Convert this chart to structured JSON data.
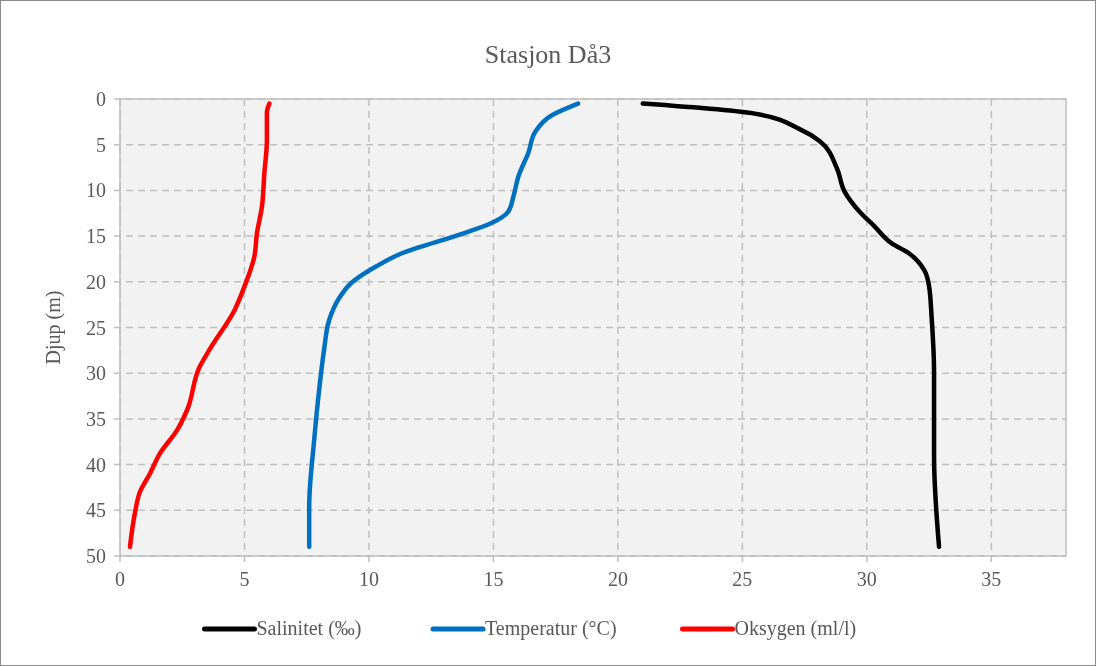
{
  "chart_data": {
    "type": "line",
    "title": "Stasjon Då3",
    "ylabel": "Djup (m)",
    "xlim": [
      0,
      38
    ],
    "xticks": [
      0,
      5,
      10,
      15,
      20,
      25,
      30,
      35
    ],
    "ylim": [
      50,
      0
    ],
    "yticks": [
      0,
      5,
      10,
      15,
      20,
      25,
      30,
      35,
      40,
      45,
      50
    ],
    "grid": true,
    "legend": "bottom",
    "line_style": "solid",
    "marker": "none",
    "series": [
      {
        "name": "Salinitet (‰)",
        "color": "#000000",
        "x": [
          21.0,
          25.5,
          27.3,
          28.1,
          28.8,
          29.1,
          29.7,
          30.3,
          31.0,
          31.7,
          32.3,
          32.5,
          32.6,
          32.7,
          32.7,
          32.9
        ],
        "values": [
          0.5,
          1.6,
          3.3,
          4.6,
          7.6,
          10.1,
          12.3,
          13.9,
          15.8,
          16.9,
          18.7,
          20.5,
          23.8,
          30,
          39.1,
          49
        ]
      },
      {
        "name": "Temperatur (°C)",
        "color": "#0070c0",
        "x": [
          18.4,
          17.4,
          16.7,
          16.4,
          16.0,
          15.8,
          15.6,
          14.9,
          13.8,
          11.3,
          10.3,
          9.3,
          8.8,
          8.4,
          8.2,
          8.0,
          7.8,
          7.6,
          7.6
        ],
        "values": [
          0.5,
          1.7,
          3.5,
          5.9,
          8.5,
          10.7,
          12.3,
          13.6,
          14.7,
          16.9,
          18.3,
          20.1,
          21.8,
          24.2,
          27.4,
          31.8,
          37.3,
          44.6,
          49
        ]
      },
      {
        "name": "Oksygen (ml/l)",
        "color": "#ff0000",
        "x": [
          6.0,
          5.9,
          5.9,
          5.8,
          5.7,
          5.5,
          5.4,
          5.0,
          4.6,
          3.6,
          3.2,
          2.7,
          2.3,
          1.6,
          1.2,
          0.8,
          0.6,
          0.4
        ],
        "values": [
          0.5,
          1.5,
          4.5,
          8.1,
          11.8,
          14.7,
          17.2,
          20.5,
          23.1,
          27.4,
          29.3,
          34,
          36.2,
          38.8,
          41,
          43,
          45.3,
          49
        ]
      }
    ]
  }
}
